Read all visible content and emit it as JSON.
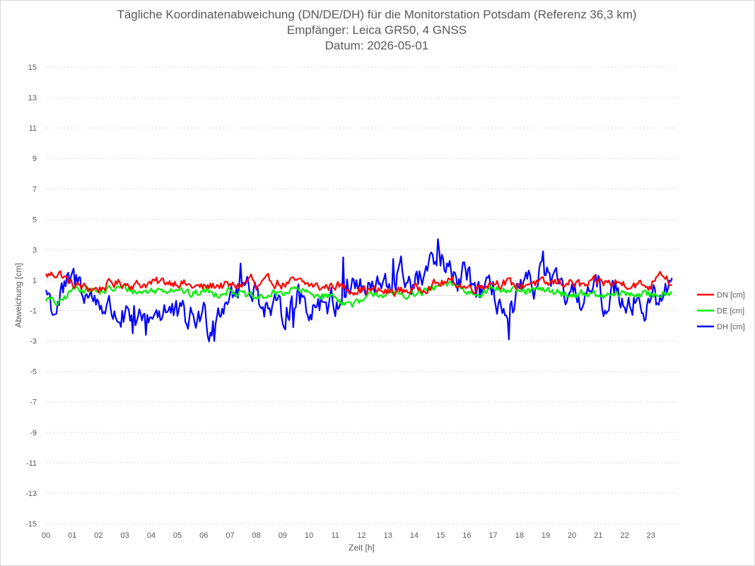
{
  "chart_data": {
    "type": "line",
    "title": "Tägliche Koordinatenabweichung (DN/DE/DH) für die Monitorstation Potsdam (Referenz 36,3 km)",
    "subtitle": "Empfänger: Leica GR50, 4 GNSS",
    "subtitle2": "Datum: 2026-05-01",
    "xlabel": "Zeit [h]",
    "ylabel": "Abweichung [cm]",
    "xlim": [
      0,
      24
    ],
    "ylim": [
      -15,
      15
    ],
    "xtick_labels": [
      "00",
      "01",
      "02",
      "03",
      "04",
      "05",
      "06",
      "07",
      "08",
      "09",
      "10",
      "11",
      "12",
      "13",
      "14",
      "15",
      "16",
      "17",
      "18",
      "19",
      "20",
      "21",
      "22",
      "23"
    ],
    "ytick_labels": [
      "15",
      "13",
      "11",
      "9",
      "7",
      "5",
      "3",
      "1",
      "-1",
      "-3",
      "-5",
      "-7",
      "-9",
      "-11",
      "-13",
      "-15"
    ],
    "grid": true,
    "legend_position": "right",
    "sample_interval_h": 0.05,
    "series": [
      {
        "name": "DN [cm]",
        "color": "#ff0000",
        "anchors": [
          [
            0.0,
            1.3
          ],
          [
            0.3,
            1.4
          ],
          [
            0.5,
            1.5
          ],
          [
            1.0,
            0.7
          ],
          [
            1.5,
            0.5
          ],
          [
            2.0,
            0.4
          ],
          [
            2.5,
            0.8
          ],
          [
            3.0,
            0.8
          ],
          [
            3.5,
            0.7
          ],
          [
            4.0,
            0.8
          ],
          [
            4.5,
            0.9
          ],
          [
            5.0,
            0.9
          ],
          [
            5.5,
            0.6
          ],
          [
            6.0,
            0.5
          ],
          [
            6.5,
            0.7
          ],
          [
            7.0,
            0.6
          ],
          [
            7.5,
            0.7
          ],
          [
            7.8,
            1.2
          ],
          [
            8.0,
            0.4
          ],
          [
            8.5,
            1.0
          ],
          [
            9.0,
            0.7
          ],
          [
            9.5,
            0.9
          ],
          [
            10.0,
            0.7
          ],
          [
            10.5,
            0.5
          ],
          [
            11.0,
            0.7
          ],
          [
            11.5,
            0.4
          ],
          [
            12.0,
            0.4
          ],
          [
            12.5,
            0.3
          ],
          [
            13.0,
            0.2
          ],
          [
            13.5,
            0.3
          ],
          [
            14.0,
            0.4
          ],
          [
            14.5,
            0.6
          ],
          [
            15.0,
            0.8
          ],
          [
            15.5,
            0.9
          ],
          [
            16.0,
            0.5
          ],
          [
            16.5,
            0.6
          ],
          [
            17.0,
            0.9
          ],
          [
            17.5,
            0.8
          ],
          [
            18.0,
            0.6
          ],
          [
            18.5,
            0.9
          ],
          [
            19.0,
            0.7
          ],
          [
            19.5,
            0.9
          ],
          [
            20.0,
            0.8
          ],
          [
            20.5,
            0.6
          ],
          [
            21.0,
            0.9
          ],
          [
            21.5,
            0.8
          ],
          [
            22.0,
            0.8
          ],
          [
            22.5,
            0.7
          ],
          [
            23.0,
            0.6
          ],
          [
            23.3,
            1.7
          ],
          [
            23.6,
            1.3
          ],
          [
            23.8,
            0.5
          ]
        ]
      },
      {
        "name": "DE [cm]",
        "color": "#00ee00",
        "anchors": [
          [
            0.0,
            -0.2
          ],
          [
            0.5,
            -0.6
          ],
          [
            1.0,
            0.4
          ],
          [
            1.5,
            0.5
          ],
          [
            2.0,
            0.2
          ],
          [
            2.5,
            0.4
          ],
          [
            3.0,
            0.5
          ],
          [
            3.5,
            0.2
          ],
          [
            4.0,
            0.3
          ],
          [
            4.5,
            0.4
          ],
          [
            5.0,
            0.5
          ],
          [
            5.5,
            0.0
          ],
          [
            6.0,
            0.3
          ],
          [
            6.5,
            0.1
          ],
          [
            7.0,
            0.4
          ],
          [
            7.5,
            0.0
          ],
          [
            8.0,
            -0.2
          ],
          [
            8.5,
            0.0
          ],
          [
            9.0,
            0.2
          ],
          [
            9.5,
            0.4
          ],
          [
            10.0,
            0.1
          ],
          [
            10.5,
            0.0
          ],
          [
            11.0,
            -0.1
          ],
          [
            11.5,
            -0.6
          ],
          [
            12.0,
            -0.5
          ],
          [
            12.5,
            0.2
          ],
          [
            13.0,
            0.0
          ],
          [
            13.5,
            0.1
          ],
          [
            14.0,
            0.0
          ],
          [
            14.5,
            0.3
          ],
          [
            15.0,
            0.6
          ],
          [
            15.5,
            0.8
          ],
          [
            16.0,
            0.2
          ],
          [
            16.5,
            0.2
          ],
          [
            17.0,
            0.5
          ],
          [
            17.5,
            0.3
          ],
          [
            18.0,
            0.2
          ],
          [
            18.5,
            0.3
          ],
          [
            19.0,
            0.3
          ],
          [
            19.5,
            0.2
          ],
          [
            20.0,
            0.0
          ],
          [
            20.5,
            0.2
          ],
          [
            21.0,
            -0.1
          ],
          [
            21.5,
            0.0
          ],
          [
            22.0,
            0.1
          ],
          [
            22.5,
            0.1
          ],
          [
            23.0,
            0.0
          ],
          [
            23.5,
            0.2
          ],
          [
            23.8,
            0.3
          ]
        ]
      },
      {
        "name": "DH [cm]",
        "color": "#0000ff",
        "anchors": [
          [
            0.0,
            0.4
          ],
          [
            0.3,
            -1.0
          ],
          [
            0.6,
            0.0
          ],
          [
            1.0,
            1.0
          ],
          [
            1.3,
            0.8
          ],
          [
            1.6,
            0.0
          ],
          [
            2.0,
            -0.4
          ],
          [
            2.5,
            -1.0
          ],
          [
            3.0,
            -1.6
          ],
          [
            3.5,
            -1.9
          ],
          [
            4.0,
            -1.2
          ],
          [
            4.5,
            -0.9
          ],
          [
            5.0,
            -1.4
          ],
          [
            5.5,
            -1.6
          ],
          [
            6.0,
            -1.3
          ],
          [
            6.2,
            -2.0
          ],
          [
            6.5,
            -1.1
          ],
          [
            7.0,
            0.4
          ],
          [
            7.3,
            0.3
          ],
          [
            7.7,
            0.9
          ],
          [
            8.0,
            0.2
          ],
          [
            8.5,
            -1.0
          ],
          [
            9.0,
            -1.2
          ],
          [
            9.5,
            0.0
          ],
          [
            10.0,
            -0.8
          ],
          [
            10.5,
            -0.2
          ],
          [
            11.0,
            -0.6
          ],
          [
            11.3,
            0.2
          ],
          [
            11.6,
            0.9
          ],
          [
            12.0,
            0.5
          ],
          [
            12.3,
            0.2
          ],
          [
            12.6,
            0.6
          ],
          [
            13.0,
            0.4
          ],
          [
            13.5,
            1.5
          ],
          [
            14.0,
            0.6
          ],
          [
            14.5,
            1.5
          ],
          [
            14.8,
            2.0
          ],
          [
            15.0,
            2.3
          ],
          [
            15.3,
            1.4
          ],
          [
            15.6,
            0.7
          ],
          [
            16.0,
            1.5
          ],
          [
            16.4,
            0.4
          ],
          [
            16.8,
            0.0
          ],
          [
            17.0,
            0.3
          ],
          [
            17.3,
            -0.6
          ],
          [
            17.6,
            -2.0
          ],
          [
            17.9,
            -0.2
          ],
          [
            18.2,
            0.4
          ],
          [
            18.6,
            0.8
          ],
          [
            18.9,
            1.8
          ],
          [
            19.2,
            0.9
          ],
          [
            19.5,
            0.3
          ],
          [
            20.0,
            -0.3
          ],
          [
            20.5,
            0.0
          ],
          [
            21.0,
            0.4
          ],
          [
            21.3,
            -0.8
          ],
          [
            21.6,
            0.6
          ],
          [
            22.0,
            -0.2
          ],
          [
            22.5,
            -0.3
          ],
          [
            22.8,
            -1.1
          ],
          [
            23.2,
            -0.2
          ],
          [
            23.5,
            0.1
          ],
          [
            23.8,
            0.5
          ]
        ],
        "spikes": [
          [
            3.3,
            -2.5
          ],
          [
            3.8,
            -2.6
          ],
          [
            6.4,
            -3.0
          ],
          [
            7.4,
            2.1
          ],
          [
            9.4,
            -2.1
          ],
          [
            11.3,
            2.5
          ],
          [
            13.2,
            2.4
          ],
          [
            14.9,
            3.7
          ],
          [
            17.6,
            -2.9
          ],
          [
            18.9,
            2.9
          ]
        ]
      }
    ]
  }
}
